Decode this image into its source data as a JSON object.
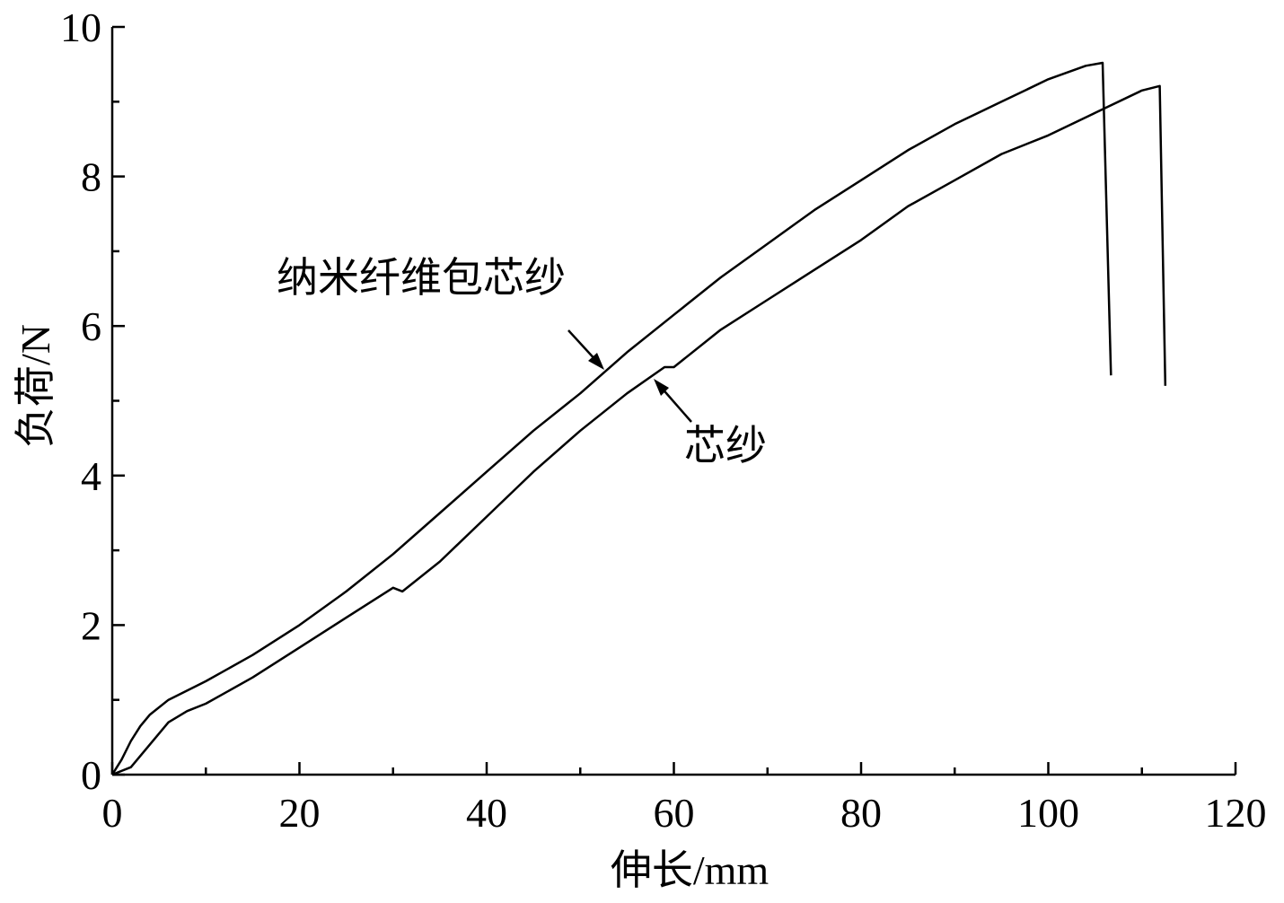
{
  "chart_data": {
    "type": "line",
    "x_label": "伸长/mm",
    "y_label": "负荷/N",
    "xlim": [
      0,
      120
    ],
    "xticks": [
      0,
      20,
      40,
      60,
      80,
      100,
      120
    ],
    "xminor": [
      10,
      30,
      50,
      70,
      90,
      110
    ],
    "ylim": [
      0,
      10
    ],
    "yticks": [
      0,
      2,
      4,
      6,
      8,
      10
    ],
    "yminor": [
      1,
      3,
      5,
      7,
      9
    ],
    "series": [
      {
        "name": "纳米纤维包芯纱",
        "color": "#000000",
        "x": [
          0,
          1,
          2,
          3,
          4,
          6,
          10,
          15,
          20,
          25,
          30,
          35,
          40,
          45,
          50,
          55,
          60,
          65,
          70,
          75,
          80,
          85,
          90,
          95,
          100,
          104,
          105.8,
          106.7
        ],
        "values": [
          0,
          0.2,
          0.45,
          0.65,
          0.8,
          1.0,
          1.25,
          1.6,
          2.0,
          2.45,
          2.95,
          3.5,
          4.05,
          4.6,
          5.1,
          5.65,
          6.15,
          6.65,
          7.1,
          7.55,
          7.95,
          8.35,
          8.7,
          9.0,
          9.3,
          9.48,
          9.52,
          5.34
        ]
      },
      {
        "name": "芯纱",
        "color": "#000000",
        "x": [
          0,
          2,
          4,
          6,
          8,
          10,
          15,
          20,
          25,
          30,
          31,
          35,
          40,
          45,
          50,
          55,
          59,
          60,
          65,
          70,
          75,
          80,
          85,
          90,
          95,
          100,
          105,
          110,
          111.9,
          112.5
        ],
        "values": [
          0,
          0.1,
          0.4,
          0.7,
          0.85,
          0.95,
          1.3,
          1.7,
          2.1,
          2.5,
          2.45,
          2.85,
          3.45,
          4.05,
          4.6,
          5.1,
          5.45,
          5.45,
          5.95,
          6.35,
          6.75,
          7.15,
          7.6,
          7.95,
          8.3,
          8.55,
          8.85,
          9.15,
          9.21,
          5.2
        ]
      }
    ]
  }
}
